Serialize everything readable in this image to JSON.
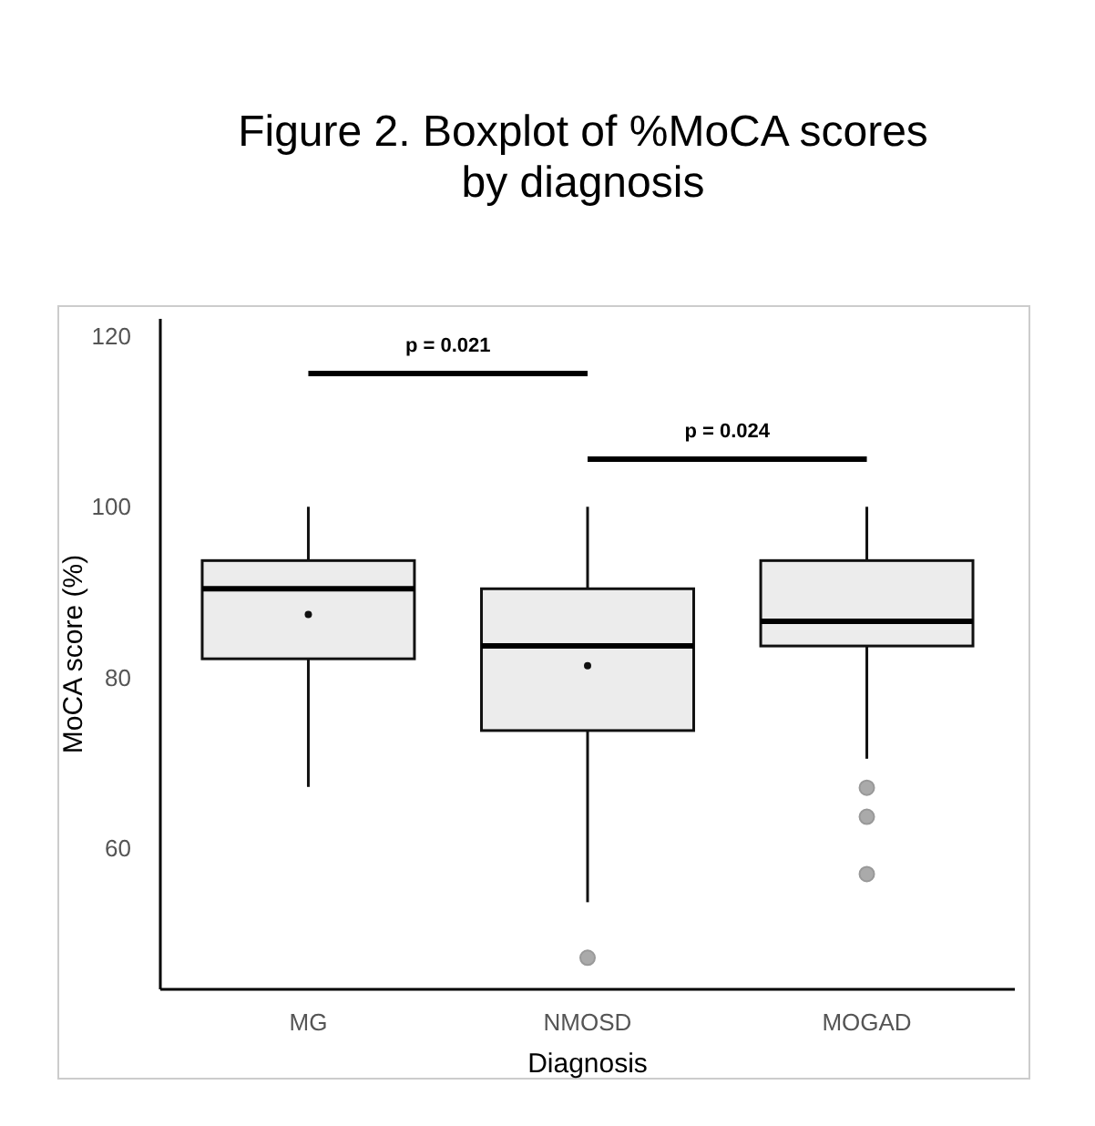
{
  "chart_data": {
    "type": "box",
    "title": "Figure 2. Boxplot of %MoCA scores by diagnosis",
    "xlabel": "Diagnosis",
    "ylabel": "MoCA score (%)",
    "categories": [
      "MG",
      "NMOSD",
      "MOGAD"
    ],
    "boxes": [
      {
        "low": 67.2,
        "q1": 82.2,
        "median": 90.4,
        "q3": 93.7,
        "high": 100,
        "mean": 87.4
      },
      {
        "low": 53.7,
        "q1": 73.8,
        "median": 83.7,
        "q3": 90.4,
        "high": 100,
        "mean": 81.4,
        "outliers": [
          47.2
        ]
      },
      {
        "low": 70.5,
        "q1": 83.7,
        "median": 86.6,
        "q3": 93.7,
        "high": 100,
        "outliers": [
          67.1,
          63.7,
          57.0
        ]
      }
    ],
    "color": "#ececec",
    "ylim": [
      43.5,
      122
    ],
    "yticks": [
      60,
      80,
      100,
      120
    ],
    "annotations": [
      "p = 0.021",
      "p = 0.024"
    ],
    "grid": false
  }
}
